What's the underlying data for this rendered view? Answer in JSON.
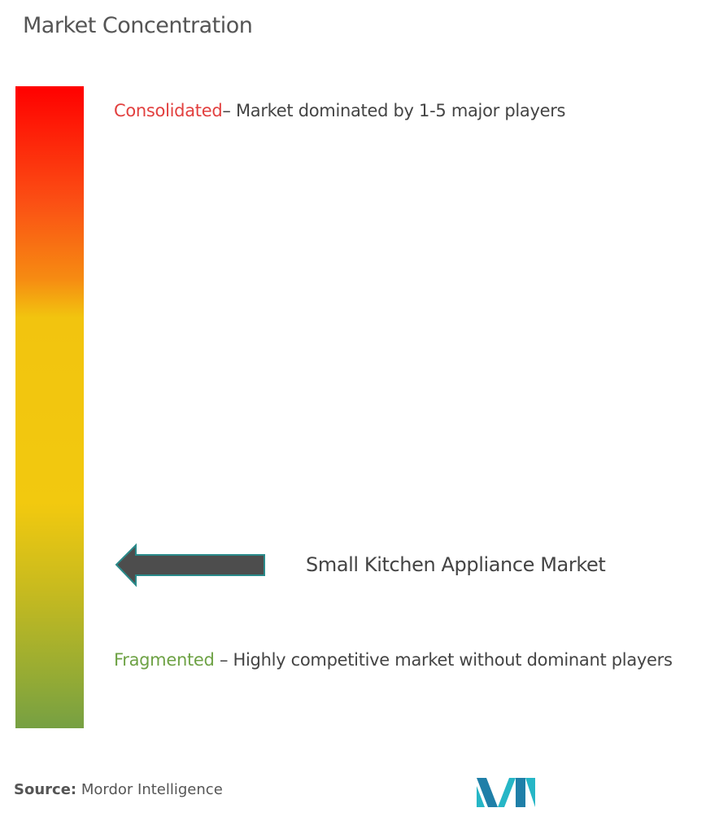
{
  "header": {
    "title": "Market Concentration"
  },
  "scale": {
    "top": {
      "label": "Consolidated",
      "description": "– Market dominated by 1-5 major players"
    },
    "bottom": {
      "label": "Fragmented",
      "description": "– Highly competitive market without dominant players"
    }
  },
  "marker": {
    "label": "Small Kitchen Appliance Market"
  },
  "footer": {
    "source_label": "Source:",
    "source": "Mordor Intelligence"
  }
}
